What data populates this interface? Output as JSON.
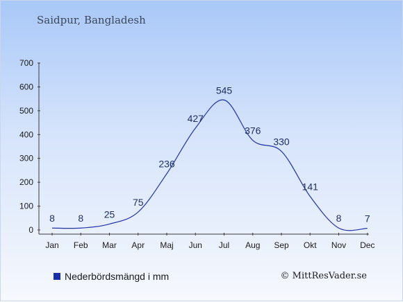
{
  "chart_data": {
    "type": "line",
    "title": "Saidpur, Bangladesh",
    "categories": [
      "Jan",
      "Feb",
      "Mar",
      "Apr",
      "Maj",
      "Jun",
      "Jul",
      "Aug",
      "Sep",
      "Okt",
      "Nov",
      "Dec"
    ],
    "series": [
      {
        "name": "Nederbördsmängd i mm",
        "values": [
          8,
          8,
          25,
          75,
          236,
          427,
          545,
          376,
          330,
          141,
          8,
          7
        ]
      }
    ],
    "data_labels": [
      "8",
      "8",
      "25",
      "75",
      "236",
      "427",
      "545",
      "376",
      "330",
      "141",
      "8",
      "7"
    ],
    "ylim": [
      0,
      700
    ],
    "yticks": [
      0,
      100,
      200,
      300,
      400,
      500,
      600,
      700
    ],
    "grid": false,
    "legend": "bottom-left",
    "colors": {
      "line": "#2233aa",
      "swatch": "#1a2eaa"
    }
  },
  "credit": "© MittResVader.se"
}
